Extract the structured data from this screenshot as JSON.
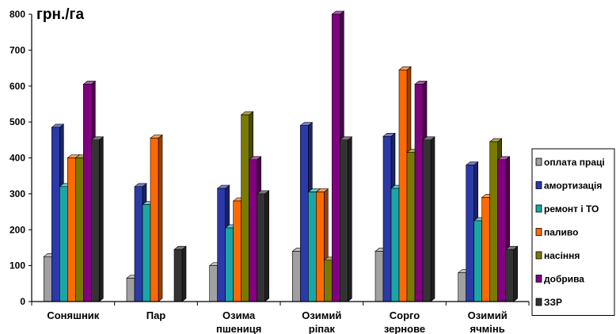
{
  "chart_data": {
    "type": "bar",
    "title": "",
    "ylabel": "грн./га",
    "xlabel": "",
    "ylim": [
      0,
      800
    ],
    "yticks": [
      0,
      100,
      200,
      300,
      400,
      500,
      600,
      700,
      800
    ],
    "grid": false,
    "legend_position": "right",
    "categories": [
      [
        "Соняшник"
      ],
      [
        "Пар"
      ],
      [
        "Озима",
        "пшениця"
      ],
      [
        "Озимий",
        "ріпак"
      ],
      [
        "Сорго",
        "зернове"
      ],
      [
        "Озимий",
        "ячмінь"
      ]
    ],
    "series": [
      {
        "name": "оплата праці",
        "color": "#a0a0a0",
        "values": [
          125,
          65,
          100,
          140,
          140,
          80
        ]
      },
      {
        "name": "амортизація",
        "color": "#2b3aa8",
        "values": [
          485,
          320,
          315,
          490,
          460,
          380
        ]
      },
      {
        "name": "ремонт і ТО",
        "color": "#1aa6a6",
        "values": [
          320,
          270,
          205,
          305,
          315,
          225
        ]
      },
      {
        "name": "паливо",
        "color": "#ff6a00",
        "values": [
          400,
          455,
          280,
          305,
          645,
          290
        ]
      },
      {
        "name": "насіння",
        "color": "#7a7a00",
        "values": [
          400,
          null,
          520,
          115,
          415,
          445
        ]
      },
      {
        "name": "добрива",
        "color": "#800080",
        "values": [
          605,
          null,
          395,
          800,
          605,
          395
        ]
      },
      {
        "name": "ЗЗР",
        "color": "#333333",
        "values": [
          450,
          145,
          300,
          450,
          450,
          145
        ]
      }
    ]
  }
}
